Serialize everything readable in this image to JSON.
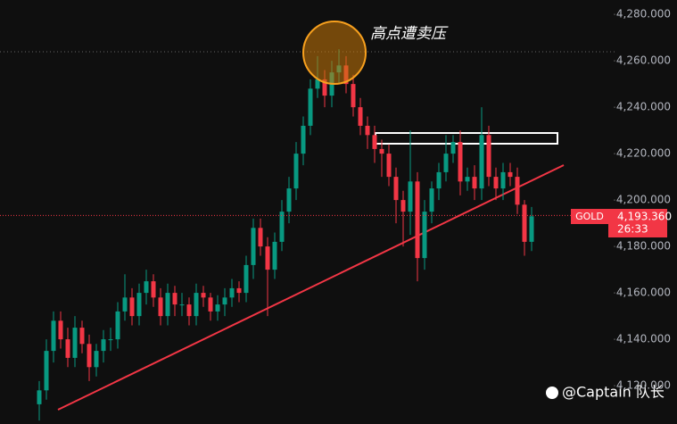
{
  "chart_data": {
    "type": "candlestick",
    "symbol": "GOLD",
    "annotation": "高点遭卖压",
    "watermark": "@Captain 队长",
    "countdown": "26:33",
    "last_price": {
      "value": 4193.36,
      "label": "4,193.360"
    },
    "up_color": "#089981",
    "down_color": "#f23645",
    "ylim": [
      4103.5,
      4286.2
    ],
    "yticks": [
      {
        "value": 4120,
        "label": "4,120.000"
      },
      {
        "value": 4140,
        "label": "4,140.000"
      },
      {
        "value": 4160,
        "label": "4,160.000"
      },
      {
        "value": 4180,
        "label": "4,180.000"
      },
      {
        "value": 4200,
        "label": "4,200.000"
      },
      {
        "value": 4220,
        "label": "4,220.000"
      },
      {
        "value": 4240,
        "label": "4,240.000"
      },
      {
        "value": 4260,
        "label": "4,260.000"
      },
      {
        "value": 4280,
        "label": "4,280.000"
      }
    ],
    "open": [
      4112,
      4118,
      4135,
      4148,
      4140,
      4132,
      4145,
      4138,
      4128,
      4135,
      4140,
      4140,
      4152,
      4158,
      4150,
      4160,
      4165,
      4158,
      4150,
      4160,
      4155,
      4155,
      4150,
      4160,
      4158,
      4152,
      4155,
      4158,
      4162,
      4160,
      4172,
      4188,
      4180,
      4170,
      4182,
      4195,
      4205,
      4220,
      4232,
      4248,
      4252,
      4245,
      4255,
      4258,
      4250,
      4240,
      4232,
      4228,
      4222,
      4220,
      4210,
      4200,
      4195,
      4208,
      4175,
      4195,
      4205,
      4212,
      4220,
      4225,
      4208,
      4210,
      4205,
      4228,
      4210,
      4205,
      4212,
      4210,
      4198,
      4182
    ],
    "high": [
      4122,
      4140,
      4152,
      4152,
      4145,
      4150,
      4148,
      4142,
      4138,
      4144,
      4145,
      4156,
      4168,
      4162,
      4164,
      4170,
      4168,
      4162,
      4164,
      4163,
      4160,
      4158,
      4164,
      4163,
      4160,
      4159,
      4162,
      4166,
      4165,
      4176,
      4192,
      4192,
      4184,
      4186,
      4200,
      4210,
      4225,
      4236,
      4252,
      4262,
      4256,
      4260,
      4265,
      4262,
      4254,
      4244,
      4236,
      4232,
      4226,
      4224,
      4214,
      4204,
      4230,
      4212,
      4200,
      4208,
      4216,
      4228,
      4228,
      4230,
      4214,
      4215,
      4240,
      4232,
      4214,
      4216,
      4216,
      4214,
      4200,
      4197
    ],
    "low": [
      4105,
      4114,
      4130,
      4136,
      4128,
      4128,
      4134,
      4122,
      4124,
      4130,
      4135,
      4136,
      4148,
      4146,
      4146,
      4155,
      4154,
      4146,
      4146,
      4150,
      4150,
      4146,
      4146,
      4154,
      4148,
      4148,
      4150,
      4154,
      4156,
      4156,
      4166,
      4176,
      4150,
      4166,
      4178,
      4190,
      4200,
      4215,
      4228,
      4244,
      4240,
      4240,
      4250,
      4246,
      4236,
      4228,
      4222,
      4216,
      4210,
      4206,
      4190,
      4180,
      4185,
      4165,
      4170,
      4190,
      4200,
      4208,
      4216,
      4202,
      4204,
      4200,
      4200,
      4206,
      4200,
      4200,
      4206,
      4194,
      4176,
      4178
    ],
    "close": [
      4118,
      4135,
      4148,
      4140,
      4132,
      4145,
      4138,
      4128,
      4135,
      4140,
      4140,
      4152,
      4158,
      4150,
      4160,
      4165,
      4158,
      4150,
      4160,
      4155,
      4155,
      4150,
      4160,
      4158,
      4152,
      4155,
      4158,
      4162,
      4160,
      4172,
      4188,
      4180,
      4170,
      4182,
      4195,
      4205,
      4220,
      4232,
      4248,
      4252,
      4245,
      4255,
      4258,
      4250,
      4240,
      4232,
      4228,
      4222,
      4220,
      4210,
      4200,
      4195,
      4208,
      4175,
      4195,
      4205,
      4212,
      4220,
      4225,
      4208,
      4210,
      4205,
      4228,
      4210,
      4205,
      4212,
      4210,
      4198,
      4182,
      4193
    ]
  }
}
